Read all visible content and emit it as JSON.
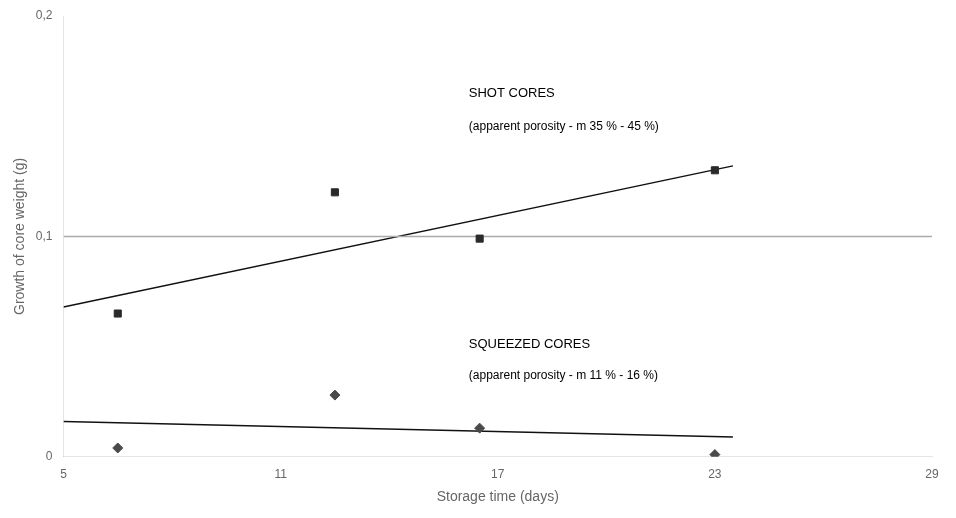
{
  "chart_data": {
    "type": "scatter",
    "x_label": "Storage time (days)",
    "y_label": "Growth of core weight (g)",
    "xlim": [
      5,
      29
    ],
    "ylim": [
      0.0,
      0.2
    ],
    "xticks": [
      5,
      11,
      17,
      23,
      29
    ],
    "yticks": [
      0,
      {
        "value": 0.1,
        "label": "0,1"
      },
      {
        "value": 0.2,
        "label": "0,2"
      }
    ],
    "grid": false,
    "legend": false,
    "series": [
      {
        "type": "line",
        "x": [
          5,
          29
        ],
        "values": [
          0.1,
          0.1
        ],
        "color": "#aaaaaa"
      },
      {
        "type": "line",
        "x": [
          5,
          23.5
        ],
        "values": [
          0.068,
          0.132
        ],
        "color": "#111111"
      },
      {
        "type": "line",
        "x": [
          5,
          23.5
        ],
        "values": [
          0.016,
          0.009
        ],
        "color": "#111111"
      },
      {
        "type": "scatter",
        "marker": "square",
        "x": [
          6.5,
          12.5,
          16.5,
          23.0
        ],
        "values": [
          0.065,
          0.12,
          0.099,
          0.13
        ],
        "color": "#2a2a2a"
      },
      {
        "type": "scatter",
        "marker": "diamond",
        "x": [
          6.5,
          12.5,
          16.5,
          23.0
        ],
        "values": [
          0.004,
          0.028,
          0.013,
          0.001
        ],
        "color": "#4a4a4a"
      }
    ],
    "annotations": [
      {
        "text": "SHOT CORES",
        "x": 16.2,
        "y": 0.162
      },
      {
        "text": "(apparent porosity - m 35 % - 45 %)",
        "x": 16.2,
        "y": 0.147
      },
      {
        "text": "SQUEEZED CORES",
        "x": 16.2,
        "y": 0.048
      },
      {
        "text": "(apparent porosity - m 11 % - 16 %)",
        "x": 16.2,
        "y": 0.034
      }
    ]
  }
}
